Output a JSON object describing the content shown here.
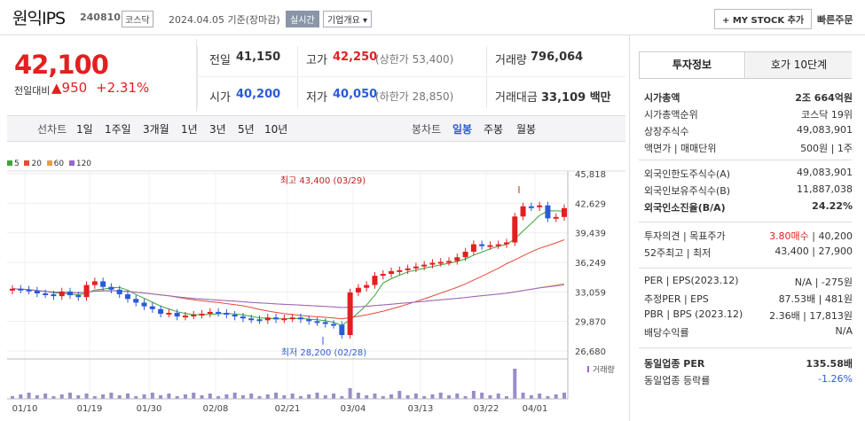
{
  "header": {
    "name": "원익IPS",
    "code": "240810",
    "market": "코스닥",
    "date": "2024.04.05 기준(장마감)",
    "realtime": "실시간",
    "company_info": "기업개요",
    "my_stock": "+ MY STOCK 추가",
    "quick_order": "빠른주문"
  },
  "price": {
    "current": "42,100",
    "change_label": "전일대비",
    "change": "950",
    "percent": "+2.31%"
  },
  "quotes": {
    "prev_label": "전일",
    "prev": "41,150",
    "high_label": "고가",
    "high": "42,250",
    "high_limit": "(상한가 53,400)",
    "volume_label": "거래량",
    "volume": "796,064",
    "open_label": "시가",
    "open": "40,200",
    "low_label": "저가",
    "low": "40,050",
    "low_limit": "(하한가 28,850)",
    "amount_label": "거래대금",
    "amount": "33,109 백만"
  },
  "periods": {
    "label": "선차트",
    "items": [
      "1일",
      "1주일",
      "3개월",
      "1년",
      "3년",
      "5년",
      "10년"
    ],
    "candle_label": "봉차트",
    "candle_items": [
      "일봉",
      "주봉",
      "월봉"
    ]
  },
  "legend": [
    "5",
    "20",
    "60",
    "120"
  ],
  "chart_data": {
    "type": "candlestick",
    "y_ticks": [
      "45,818",
      "42,629",
      "39,439",
      "36,249",
      "33,059",
      "29,870",
      "26,680"
    ],
    "x_ticks": [
      "01/10",
      "01/19",
      "01/30",
      "02/08",
      "02/21",
      "03/04",
      "03/13",
      "03/22",
      "04/01"
    ],
    "high_annotation": "최고 43,400 (03/29)",
    "low_annotation": "최저 28,200 (02/28)",
    "volume_label": "거래량",
    "ylim": [
      26680,
      45818
    ]
  },
  "right": {
    "tab1": "투자정보",
    "tab2": "호가 10단계",
    "rows1": [
      [
        "시가총액",
        "2조 664억원"
      ],
      [
        "시가총액순위",
        "코스닥 19위"
      ],
      [
        "상장주식수",
        "49,083,901"
      ],
      [
        "액면가 | 매매단위",
        "500원 | 1주"
      ]
    ],
    "rows2": [
      [
        "외국인한도주식수(A)",
        "49,083,901"
      ],
      [
        "외국인보유주식수(B)",
        "11,887,038"
      ],
      [
        "외국인소진율(B/A)",
        "24.22%"
      ]
    ],
    "rows3": [
      [
        "투자의견 | 목표주가",
        "3.80매수 | 40,200"
      ],
      [
        "52주최고 | 최저",
        "43,400 | 27,900"
      ]
    ],
    "rows4": [
      [
        "PER | EPS(2023.12)",
        "N/A | -275원"
      ],
      [
        "추정PER | EPS",
        "87.53배 | 481원"
      ],
      [
        "PBR | BPS (2023.12)",
        "2.36배 | 17,813원"
      ],
      [
        "배당수익률",
        "N/A"
      ]
    ],
    "rows5": [
      [
        "동일업종 PER",
        "135.58배"
      ],
      [
        "동일업종 등락률",
        "-1.26%"
      ]
    ]
  },
  "colors": {
    "up": "#e22020",
    "down": "#2a5bd7",
    "ma5": "#3aa53a",
    "ma20": "#e24a3a",
    "ma60": "#e8a040",
    "ma120": "#9966cc"
  }
}
